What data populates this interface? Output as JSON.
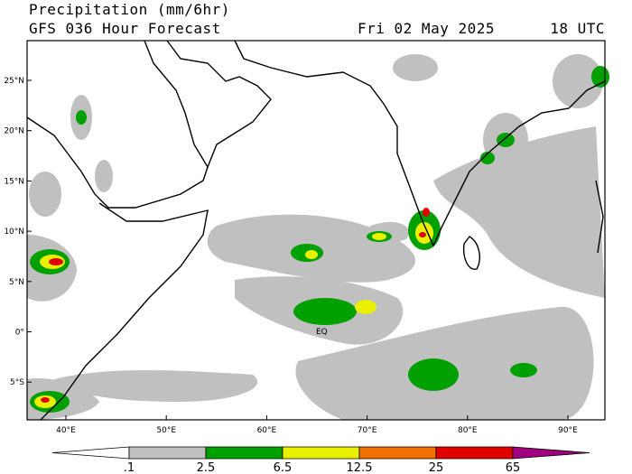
{
  "header": {
    "title": "Precipitation (mm/6hr)",
    "subtitle": "GFS 036 Hour Forecast",
    "date": "Fri 02 May 2025",
    "time": "18 UTC"
  },
  "map": {
    "lat_labels": [
      "25°N",
      "20°N",
      "15°N",
      "10°N",
      "5°N",
      "0°",
      "5°S"
    ],
    "lon_labels": [
      "40°E",
      "50°E",
      "60°E",
      "70°E",
      "80°E",
      "90°E"
    ],
    "annotation": "EQ"
  },
  "colorbar": {
    "labels": [
      ".1",
      "2.5",
      "6.5",
      "12.5",
      "25",
      "65"
    ],
    "colors": [
      "#ffffff",
      "#c0c0c0",
      "#00a000",
      "#e8f000",
      "#f07000",
      "#e00000",
      "#a00080"
    ]
  }
}
